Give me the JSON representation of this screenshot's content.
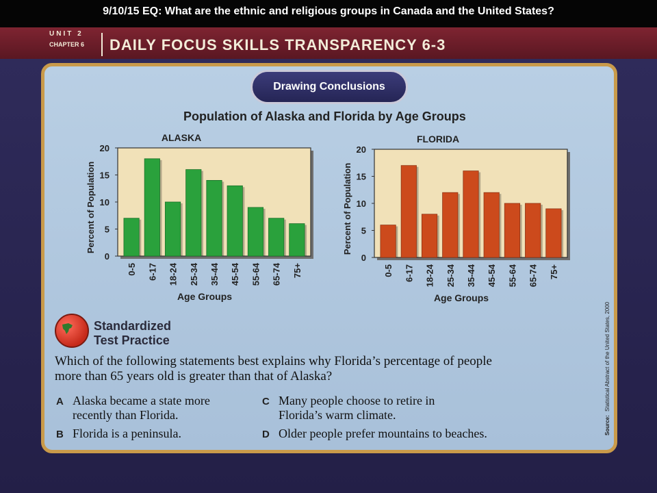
{
  "header": {
    "eq_text": "9/10/15 EQ: What are the ethnic and religious groups in Canada and the United States?"
  },
  "banner": {
    "unit": "UNIT 2",
    "chapter": "CHAPTER 6",
    "title": "DAILY FOCUS SKILLS TRANSPARENCY 6-3"
  },
  "skill_label": "Drawing Conclusions",
  "chart_title": "Population of Alaska and Florida by Age Groups",
  "chart_data": [
    {
      "type": "bar",
      "title": "ALASKA",
      "categories": [
        "0-5",
        "6-17",
        "18-24",
        "25-34",
        "35-44",
        "45-54",
        "55-64",
        "65-74",
        "75+"
      ],
      "values": [
        7,
        18,
        10,
        16,
        14,
        13,
        9,
        7,
        6
      ],
      "xlabel": "Age Groups",
      "ylabel": "Percent of Population",
      "ylim": [
        0,
        20
      ],
      "yticks": [
        0,
        5,
        10,
        15,
        20
      ],
      "color": "#2aa13c"
    },
    {
      "type": "bar",
      "title": "FLORIDA",
      "categories": [
        "0-5",
        "6-17",
        "18-24",
        "25-34",
        "35-44",
        "45-54",
        "55-64",
        "65-74",
        "75+"
      ],
      "values": [
        6,
        17,
        8,
        12,
        16,
        12,
        10,
        10,
        9
      ],
      "xlabel": "Age Groups",
      "ylabel": "Percent of Population",
      "ylim": [
        0,
        20
      ],
      "yticks": [
        0,
        5,
        10,
        15,
        20
      ],
      "color": "#cc4a1c"
    }
  ],
  "chart_background": "#f1e1b8",
  "test_practice": {
    "line1": "Standardized",
    "line2": "Test Practice",
    "question": "Which of the following statements best explains why Florida’s percentage of people more than 65 years old is greater than that of Alaska?",
    "answers": [
      {
        "letter": "A",
        "text": "Alaska became a state more recently than Florida."
      },
      {
        "letter": "B",
        "text": "Florida is a peninsula."
      },
      {
        "letter": "C",
        "text": "Many people choose to retire in Florida’s warm climate."
      },
      {
        "letter": "D",
        "text": "Older people prefer mountains to beaches."
      }
    ]
  },
  "source_label": "Source:",
  "source_text": "Statistical Abstract of the United States, 2000"
}
